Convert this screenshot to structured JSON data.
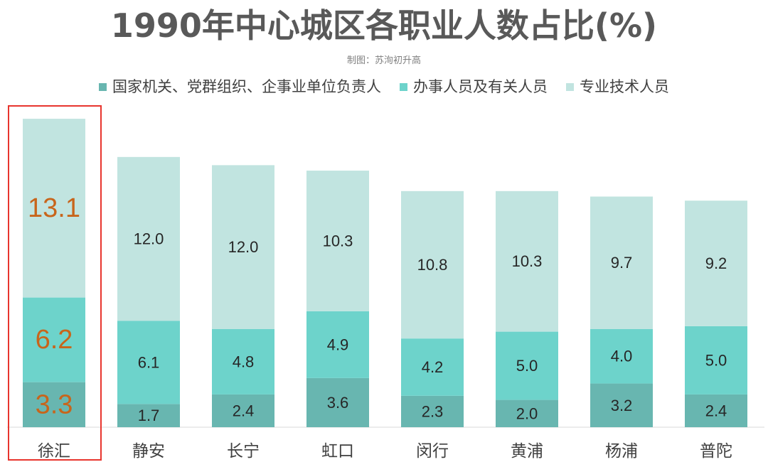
{
  "chart_data": {
    "type": "bar",
    "stacked": true,
    "title": "1990年中心城区各职业人数占比(%)",
    "subtitle": "制图：苏洵初升高",
    "categories": [
      "徐汇",
      "静安",
      "长宁",
      "虹口",
      "闵行",
      "黄浦",
      "杨浦",
      "普陀"
    ],
    "series": [
      {
        "name": "国家机关、党群组织、企事业单位负责人",
        "color": "#68b6b0",
        "values": [
          3.3,
          1.7,
          2.4,
          3.6,
          2.3,
          2.0,
          3.2,
          2.4
        ]
      },
      {
        "name": "办事人员及有关人员",
        "color": "#6dd3cb",
        "values": [
          6.2,
          6.1,
          4.8,
          4.9,
          4.2,
          5.0,
          4.0,
          5.0
        ]
      },
      {
        "name": "专业技术人员",
        "color": "#c1e4e0",
        "values": [
          13.1,
          12.0,
          12.0,
          10.3,
          10.8,
          10.3,
          9.7,
          9.2
        ]
      }
    ],
    "legend_position": "top",
    "highlight": {
      "category": "徐汇",
      "label_color": "#c8651b",
      "box_color": "#e8352e"
    },
    "label_color": "#262626",
    "grid": false
  }
}
